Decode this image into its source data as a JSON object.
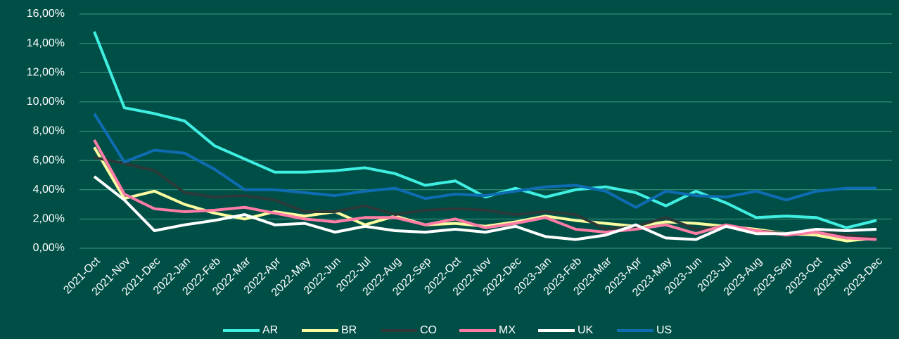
{
  "chart_data": {
    "type": "line",
    "categories": [
      "2021-Oct",
      "2021-Nov",
      "2021-Dec",
      "2022-Jan",
      "2022-Feb",
      "2022-Mar",
      "2022-Apr",
      "2022-May",
      "2022-Jun",
      "2022-Jul",
      "2022-Aug",
      "2022-Sep",
      "2022-Oct",
      "2022-Nov",
      "2022-Dec",
      "2023-Jan",
      "2023-Feb",
      "2023-Mar",
      "2023-Apr",
      "2023-May",
      "2023-Jun",
      "2023-Jul",
      "2023-Aug",
      "2023-Sep",
      "2023-Oct",
      "2023-Nov",
      "2023-Dec"
    ],
    "series": [
      {
        "name": "AR",
        "color": "#3ff0e2",
        "values": [
          14.8,
          9.6,
          9.2,
          8.7,
          7.0,
          6.1,
          5.2,
          5.2,
          5.3,
          5.5,
          5.1,
          4.3,
          4.6,
          3.5,
          4.1,
          3.5,
          4.0,
          4.2,
          3.8,
          2.9,
          3.9,
          3.1,
          2.1,
          2.2,
          2.1,
          1.4,
          1.9
        ]
      },
      {
        "name": "BR",
        "color": "#fbfca0",
        "values": [
          6.9,
          3.4,
          3.9,
          3.0,
          2.4,
          2.0,
          2.5,
          2.2,
          2.5,
          1.6,
          2.2,
          1.6,
          1.7,
          1.5,
          1.8,
          2.2,
          1.9,
          1.7,
          1.5,
          1.8,
          1.7,
          1.5,
          1.3,
          1.0,
          0.9,
          0.5,
          0.7
        ]
      },
      {
        "name": "CO",
        "color": "#2b3a38",
        "values": [
          6.2,
          5.8,
          5.3,
          3.8,
          3.5,
          3.6,
          3.3,
          2.5,
          2.5,
          2.9,
          2.3,
          2.6,
          2.7,
          2.6,
          2.3,
          2.5,
          2.3,
          1.3,
          1.5,
          2.1,
          1.3,
          1.5,
          1.2,
          1.0,
          1.1,
          0.9,
          0.7
        ]
      },
      {
        "name": "MX",
        "color": "#ff7ca6",
        "values": [
          7.4,
          3.7,
          2.7,
          2.5,
          2.6,
          2.8,
          2.4,
          2.0,
          1.8,
          2.1,
          2.1,
          1.6,
          2.0,
          1.4,
          1.7,
          2.1,
          1.3,
          1.1,
          1.3,
          1.6,
          1.0,
          1.6,
          1.2,
          0.9,
          1.1,
          0.7,
          0.6
        ]
      },
      {
        "name": "UK",
        "color": "#ffffff",
        "values": [
          4.9,
          3.3,
          1.2,
          1.6,
          1.9,
          2.3,
          1.6,
          1.7,
          1.1,
          1.5,
          1.2,
          1.1,
          1.3,
          1.1,
          1.5,
          0.8,
          0.6,
          0.9,
          1.6,
          0.7,
          0.6,
          1.5,
          1.0,
          1.0,
          1.3,
          1.2,
          1.3
        ]
      },
      {
        "name": "US",
        "color": "#0e6cb2",
        "values": [
          9.2,
          5.9,
          6.7,
          6.5,
          5.4,
          4.0,
          4.0,
          3.8,
          3.6,
          3.9,
          4.1,
          3.4,
          3.7,
          3.6,
          3.9,
          4.2,
          4.3,
          3.9,
          2.8,
          3.9,
          3.6,
          3.5,
          3.9,
          3.3,
          3.9,
          4.1,
          4.1
        ]
      }
    ],
    "ylim": [
      0,
      16
    ],
    "yticks": [
      {
        "value": 0,
        "label": "0,00%"
      },
      {
        "value": 2,
        "label": "2,00%"
      },
      {
        "value": 4,
        "label": "4,00%"
      },
      {
        "value": 6,
        "label": "6,00%"
      },
      {
        "value": 8,
        "label": "8,00%"
      },
      {
        "value": 10,
        "label": "10,00%"
      },
      {
        "value": 12,
        "label": "12,00%"
      },
      {
        "value": 14,
        "label": "14,00%"
      },
      {
        "value": 16,
        "label": "16,00%"
      }
    ],
    "grid": true,
    "legend": "bottom"
  }
}
